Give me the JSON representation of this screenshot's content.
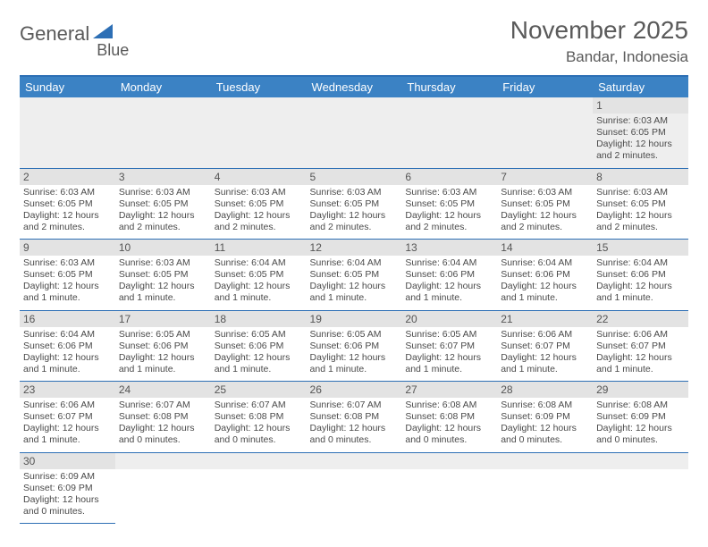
{
  "logo": {
    "text1": "General",
    "text2": "Blue"
  },
  "title": "November 2025",
  "location": "Bandar, Indonesia",
  "colors": {
    "header_bg": "#3b82c4",
    "border": "#2d6fb5",
    "daynum_bg": "#e3e3e3",
    "text": "#4a4a4a"
  },
  "day_headers": [
    "Sunday",
    "Monday",
    "Tuesday",
    "Wednesday",
    "Thursday",
    "Friday",
    "Saturday"
  ],
  "weeks": [
    {
      "nums": [
        "",
        "",
        "",
        "",
        "",
        "",
        "1"
      ],
      "cells": [
        "",
        "",
        "",
        "",
        "",
        "",
        "Sunrise: 6:03 AM\nSunset: 6:05 PM\nDaylight: 12 hours and 2 minutes."
      ]
    },
    {
      "nums": [
        "2",
        "3",
        "4",
        "5",
        "6",
        "7",
        "8"
      ],
      "cells": [
        "Sunrise: 6:03 AM\nSunset: 6:05 PM\nDaylight: 12 hours and 2 minutes.",
        "Sunrise: 6:03 AM\nSunset: 6:05 PM\nDaylight: 12 hours and 2 minutes.",
        "Sunrise: 6:03 AM\nSunset: 6:05 PM\nDaylight: 12 hours and 2 minutes.",
        "Sunrise: 6:03 AM\nSunset: 6:05 PM\nDaylight: 12 hours and 2 minutes.",
        "Sunrise: 6:03 AM\nSunset: 6:05 PM\nDaylight: 12 hours and 2 minutes.",
        "Sunrise: 6:03 AM\nSunset: 6:05 PM\nDaylight: 12 hours and 2 minutes.",
        "Sunrise: 6:03 AM\nSunset: 6:05 PM\nDaylight: 12 hours and 2 minutes."
      ]
    },
    {
      "nums": [
        "9",
        "10",
        "11",
        "12",
        "13",
        "14",
        "15"
      ],
      "cells": [
        "Sunrise: 6:03 AM\nSunset: 6:05 PM\nDaylight: 12 hours and 1 minute.",
        "Sunrise: 6:03 AM\nSunset: 6:05 PM\nDaylight: 12 hours and 1 minute.",
        "Sunrise: 6:04 AM\nSunset: 6:05 PM\nDaylight: 12 hours and 1 minute.",
        "Sunrise: 6:04 AM\nSunset: 6:05 PM\nDaylight: 12 hours and 1 minute.",
        "Sunrise: 6:04 AM\nSunset: 6:06 PM\nDaylight: 12 hours and 1 minute.",
        "Sunrise: 6:04 AM\nSunset: 6:06 PM\nDaylight: 12 hours and 1 minute.",
        "Sunrise: 6:04 AM\nSunset: 6:06 PM\nDaylight: 12 hours and 1 minute."
      ]
    },
    {
      "nums": [
        "16",
        "17",
        "18",
        "19",
        "20",
        "21",
        "22"
      ],
      "cells": [
        "Sunrise: 6:04 AM\nSunset: 6:06 PM\nDaylight: 12 hours and 1 minute.",
        "Sunrise: 6:05 AM\nSunset: 6:06 PM\nDaylight: 12 hours and 1 minute.",
        "Sunrise: 6:05 AM\nSunset: 6:06 PM\nDaylight: 12 hours and 1 minute.",
        "Sunrise: 6:05 AM\nSunset: 6:06 PM\nDaylight: 12 hours and 1 minute.",
        "Sunrise: 6:05 AM\nSunset: 6:07 PM\nDaylight: 12 hours and 1 minute.",
        "Sunrise: 6:06 AM\nSunset: 6:07 PM\nDaylight: 12 hours and 1 minute.",
        "Sunrise: 6:06 AM\nSunset: 6:07 PM\nDaylight: 12 hours and 1 minute."
      ]
    },
    {
      "nums": [
        "23",
        "24",
        "25",
        "26",
        "27",
        "28",
        "29"
      ],
      "cells": [
        "Sunrise: 6:06 AM\nSunset: 6:07 PM\nDaylight: 12 hours and 1 minute.",
        "Sunrise: 6:07 AM\nSunset: 6:08 PM\nDaylight: 12 hours and 0 minutes.",
        "Sunrise: 6:07 AM\nSunset: 6:08 PM\nDaylight: 12 hours and 0 minutes.",
        "Sunrise: 6:07 AM\nSunset: 6:08 PM\nDaylight: 12 hours and 0 minutes.",
        "Sunrise: 6:08 AM\nSunset: 6:08 PM\nDaylight: 12 hours and 0 minutes.",
        "Sunrise: 6:08 AM\nSunset: 6:09 PM\nDaylight: 12 hours and 0 minutes.",
        "Sunrise: 6:08 AM\nSunset: 6:09 PM\nDaylight: 12 hours and 0 minutes."
      ]
    },
    {
      "nums": [
        "30",
        "",
        "",
        "",
        "",
        "",
        ""
      ],
      "cells": [
        "Sunrise: 6:09 AM\nSunset: 6:09 PM\nDaylight: 12 hours and 0 minutes.",
        "",
        "",
        "",
        "",
        "",
        ""
      ]
    }
  ]
}
